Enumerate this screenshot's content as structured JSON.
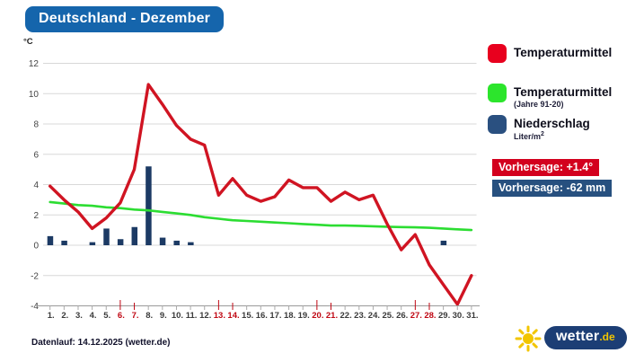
{
  "header": {
    "title": "Deutschland - Dezember"
  },
  "chart_data": {
    "type": "line+bar",
    "title": "Deutschland - Dezember",
    "ylabel": "°C",
    "ylim": [
      -4,
      12
    ],
    "yticks": [
      12,
      10,
      8,
      6,
      4,
      2,
      0,
      -2,
      -4
    ],
    "grid": true,
    "x": [
      1,
      2,
      3,
      4,
      5,
      6,
      7,
      8,
      9,
      10,
      11,
      12,
      13,
      14,
      15,
      16,
      17,
      18,
      19,
      20,
      21,
      22,
      23,
      24,
      25,
      26,
      27,
      28,
      29,
      30,
      31
    ],
    "x_tick_labels": [
      "1.",
      "2.",
      "3.",
      "4.",
      "5.",
      "6.",
      "7.",
      "8.",
      "9.",
      "10.",
      "11.",
      "12.",
      "13.",
      "14.",
      "15.",
      "16.",
      "17.",
      "18.",
      "19.",
      "20.",
      "21.",
      "22.",
      "23.",
      "24.",
      "25.",
      "26.",
      "27.",
      "28.",
      "29.",
      "30.",
      "31."
    ],
    "weekend_days": [
      6,
      7,
      13,
      14,
      20,
      21,
      27,
      28
    ],
    "saturdays": [
      6,
      13,
      20,
      27
    ],
    "series": [
      {
        "name": "Temperaturmittel",
        "kind": "line",
        "color": "#d01422",
        "values": [
          3.9,
          3.0,
          2.2,
          1.1,
          1.8,
          2.8,
          5.0,
          10.6,
          9.3,
          7.9,
          7.0,
          6.6,
          3.3,
          4.4,
          3.3,
          2.9,
          3.2,
          4.3,
          3.8,
          3.8,
          2.9,
          3.5,
          3.0,
          3.3,
          1.4,
          -0.3,
          0.7,
          -1.3,
          -2.6,
          -3.9,
          -2.0
        ]
      },
      {
        "name": "Temperaturmittel (Jahre 91-20)",
        "kind": "line",
        "color": "#2cdd32",
        "values": [
          2.85,
          2.75,
          2.65,
          2.6,
          2.5,
          2.45,
          2.35,
          2.3,
          2.2,
          2.1,
          2.0,
          1.85,
          1.75,
          1.65,
          1.6,
          1.55,
          1.5,
          1.45,
          1.4,
          1.35,
          1.3,
          1.3,
          1.28,
          1.25,
          1.22,
          1.2,
          1.18,
          1.15,
          1.1,
          1.05,
          1.0
        ]
      },
      {
        "name": "Niederschlag (Liter/m²)",
        "kind": "bar",
        "color": "#1c3a64",
        "values": [
          0.6,
          0.3,
          0,
          0.2,
          1.1,
          0.4,
          1.2,
          5.2,
          0.5,
          0.3,
          0.2,
          0,
          0,
          0,
          0,
          0,
          0,
          0,
          0,
          0,
          0,
          0,
          0,
          0,
          0,
          0,
          0,
          0,
          0.3,
          0,
          0
        ]
      }
    ],
    "colors": {
      "grid": "#d8d8d8",
      "axis": "#9a9a9a",
      "tick_label": "#3b3b3b",
      "weekend_label": "#c00814"
    }
  },
  "legend": {
    "items": [
      {
        "label": "Temperaturmittel",
        "sub": "",
        "color": "#e8001e"
      },
      {
        "label": "Temperaturmittel",
        "sub": "(Jahre 91-20)",
        "color": "#2ce52c"
      },
      {
        "label": "Niederschlag",
        "sub": "Liter/m",
        "sup": "2",
        "color": "#2a5080"
      }
    ],
    "forecast_temp": "Vorhersage: +1.4°",
    "forecast_precip": "Vorhersage: -62 mm"
  },
  "footer": {
    "datenlauf": "Datenlauf: 14.12.2025 (wetter.de)"
  },
  "logo": {
    "word": "wetter",
    "tld": ".de",
    "sun_color": "#f2c500",
    "pill_color": "#1c3e75"
  }
}
